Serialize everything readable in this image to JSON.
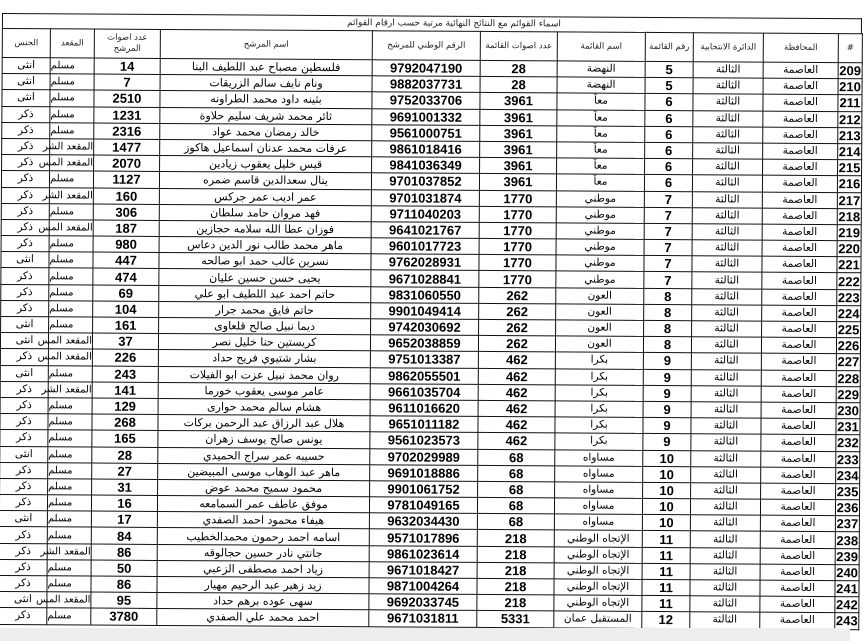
{
  "document": {
    "title": "اسماء القوائم مع النتائج النهائية مرتبة حسب ارقام القوائم",
    "columns": [
      "#",
      "المحافظة",
      "الدائرة الانتخابية",
      "رقم القائمة",
      "اسم القائمة",
      "عدد اصوات القائمة",
      "الرقم الوطني للمرشح",
      "اسم المرشح",
      "عدد اصوات المرشح",
      "المقعد",
      "الجنس"
    ],
    "rows": [
      [
        "209",
        "العاصمة",
        "الثالثة",
        "5",
        "النهضة",
        "28",
        "9792047190",
        "فلسطين مصباح عبد اللطيف البنا",
        "14",
        "مسلم",
        "انثى"
      ],
      [
        "210",
        "العاصمة",
        "الثالثة",
        "5",
        "النهضة",
        "28",
        "9882037731",
        "ونام نايف سالم الزريقات",
        "7",
        "مسلم",
        "انثى"
      ],
      [
        "211",
        "العاصمة",
        "الثالثة",
        "6",
        "معاً",
        "3961",
        "9752033706",
        "بثينه داود محمد الطراونه",
        "2510",
        "مسلم",
        "انثى"
      ],
      [
        "212",
        "العاصمة",
        "الثالثة",
        "6",
        "معاً",
        "3961",
        "9691001332",
        "ثائر محمد شريف سليم حلاوة",
        "1231",
        "مسلم",
        "ذكر"
      ],
      [
        "213",
        "العاصمة",
        "الثالثة",
        "6",
        "معاً",
        "3961",
        "9561000751",
        "خالد رمضان محمد عواد",
        "2316",
        "مسلم",
        "ذكر"
      ],
      [
        "214",
        "العاصمة",
        "الثالثة",
        "6",
        "معاً",
        "3961",
        "9861018416",
        "عرفات محمد عدنان اسماعيل هاكوز",
        "1477",
        "المقعد الشر",
        "ذكر"
      ],
      [
        "215",
        "العاصمة",
        "الثالثة",
        "6",
        "معاً",
        "3961",
        "9841036349",
        "قيس خليل يعقوب زيادين",
        "2070",
        "المقعد المس",
        "ذكر"
      ],
      [
        "216",
        "العاصمة",
        "الثالثة",
        "6",
        "معاً",
        "3961",
        "9701037852",
        "ينال سعدالدين قاسم ضمره",
        "1127",
        "مسلم",
        "ذكر"
      ],
      [
        "217",
        "العاصمة",
        "الثالثة",
        "7",
        "موطني",
        "1770",
        "9701031874",
        "عمر اديب عمر جركس",
        "160",
        "المقعد الشر",
        "ذكر"
      ],
      [
        "218",
        "العاصمة",
        "الثالثة",
        "7",
        "موطني",
        "1770",
        "9711040203",
        "فهد مروان حامد سلطان",
        "306",
        "مسلم",
        "ذكر"
      ],
      [
        "219",
        "العاصمة",
        "الثالثة",
        "7",
        "موطني",
        "1770",
        "9641021767",
        "فوزان عطا الله سلامه حجازين",
        "187",
        "المقعد المس",
        "ذكر"
      ],
      [
        "220",
        "العاصمة",
        "الثالثة",
        "7",
        "موطني",
        "1770",
        "9601017723",
        "ماهر محمد طالب نور الدين دعاس",
        "980",
        "مسلم",
        "ذكر"
      ],
      [
        "221",
        "العاصمة",
        "الثالثة",
        "7",
        "موطني",
        "1770",
        "9762028931",
        "نسرين غالب حمد ابو صالحه",
        "447",
        "مسلم",
        "انثى"
      ],
      [
        "222",
        "العاصمة",
        "الثالثة",
        "7",
        "موطني",
        "1770",
        "9671028841",
        "يحيى حسن حسين عليان",
        "474",
        "مسلم",
        "ذكر"
      ],
      [
        "223",
        "العاصمة",
        "الثالثة",
        "8",
        "العون",
        "262",
        "9831060550",
        "حاتم احمد عبد اللطيف ابو علي",
        "69",
        "مسلم",
        "ذكر"
      ],
      [
        "224",
        "العاصمة",
        "الثالثة",
        "8",
        "العون",
        "262",
        "9901049414",
        "حاتم فايق محمد جرار",
        "104",
        "مسلم",
        "ذكر"
      ],
      [
        "225",
        "العاصمة",
        "الثالثة",
        "8",
        "العون",
        "262",
        "9742030692",
        "ديما نبيل صالح قلعاوى",
        "161",
        "مسلم",
        "انثى"
      ],
      [
        "226",
        "العاصمة",
        "الثالثة",
        "8",
        "العون",
        "262",
        "9652038859",
        "كريستين حنا خليل نصر",
        "37",
        "المقعد المس",
        "انثى"
      ],
      [
        "227",
        "العاصمة",
        "الثالثة",
        "9",
        "بكرا",
        "462",
        "9751013387",
        "بشار شتيوي فريح حداد",
        "226",
        "المقعد المس",
        "ذكر"
      ],
      [
        "228",
        "العاصمة",
        "الثالثة",
        "9",
        "بكرا",
        "462",
        "9862055501",
        "روان محمد نبيل عزت ابو الفيلات",
        "243",
        "مسلم",
        "انثى"
      ],
      [
        "229",
        "العاصمة",
        "الثالثة",
        "9",
        "بكرا",
        "462",
        "9661035704",
        "عامر موسى يعقوب خورما",
        "141",
        "المقعد الشر",
        "ذكر"
      ],
      [
        "230",
        "العاصمة",
        "الثالثة",
        "9",
        "بكرا",
        "462",
        "9611016620",
        "هشام سالم محمد حوارى",
        "129",
        "مسلم",
        "ذكر"
      ],
      [
        "231",
        "العاصمة",
        "الثالثة",
        "9",
        "بكرا",
        "462",
        "9651011182",
        "هلال عبد الرزاق عبد الرحمن بركات",
        "268",
        "مسلم",
        "ذكر"
      ],
      [
        "232",
        "العاصمة",
        "الثالثة",
        "9",
        "بكرا",
        "462",
        "9561023573",
        "يونس صالح يوسف زهران",
        "165",
        "مسلم",
        "ذكر"
      ],
      [
        "233",
        "العاصمة",
        "الثالثة",
        "10",
        "مساواه",
        "68",
        "9702029989",
        "حسيبه عمر سراج الحميدي",
        "28",
        "مسلم",
        "انثى"
      ],
      [
        "234",
        "العاصمة",
        "الثالثة",
        "10",
        "مساواه",
        "68",
        "9691018886",
        "ماهر عبد الوهاب موسى المبيضين",
        "27",
        "مسلم",
        "ذكر"
      ],
      [
        "235",
        "العاصمة",
        "الثالثة",
        "10",
        "مساواه",
        "68",
        "9901061752",
        "محمود سميح محمد عوض",
        "31",
        "مسلم",
        "ذكر"
      ],
      [
        "236",
        "العاصمة",
        "الثالثة",
        "10",
        "مساواه",
        "68",
        "9781049165",
        "موفق عاطف عمر السمامعه",
        "16",
        "مسلم",
        "ذكر"
      ],
      [
        "237",
        "العاصمة",
        "الثالثة",
        "10",
        "مساواه",
        "68",
        "9632034430",
        "هيفاء محمود احمد الصفدي",
        "17",
        "مسلم",
        "انثى"
      ],
      [
        "238",
        "العاصمة",
        "الثالثة",
        "11",
        "الإتجاه الوطني",
        "218",
        "9571017896",
        "اسامه احمد رحمون محمدالخطيب",
        "84",
        "مسلم",
        "ذكر"
      ],
      [
        "239",
        "العاصمة",
        "الثالثة",
        "11",
        "الإتجاه الوطني",
        "218",
        "9861023614",
        "جانتي نادر حسين حجالوقه",
        "86",
        "المقعد الشر",
        "ذكر"
      ],
      [
        "240",
        "العاصمة",
        "الثالثة",
        "11",
        "الإتجاه الوطني",
        "218",
        "9671018427",
        "زياد احمد مصطفى الزعبي",
        "50",
        "مسلم",
        "ذكر"
      ],
      [
        "241",
        "العاصمة",
        "الثالثة",
        "11",
        "الإتجاه الوطني",
        "218",
        "9871004264",
        "زيد زهير عبد الرحيم مهيار",
        "86",
        "مسلم",
        "ذكر"
      ],
      [
        "242",
        "العاصمة",
        "الثالثة",
        "11",
        "الإتجاه الوطني",
        "218",
        "9692033745",
        "سهى عوده برهم حداد",
        "95",
        "المقعد المس",
        "انثى"
      ],
      [
        "243",
        "العاصمة",
        "الثالثة",
        "12",
        "المستقبل عمان",
        "5331",
        "9671031811",
        "احمد محمد علي الصفدي",
        "3780",
        "مسلم",
        "ذكر"
      ]
    ]
  }
}
